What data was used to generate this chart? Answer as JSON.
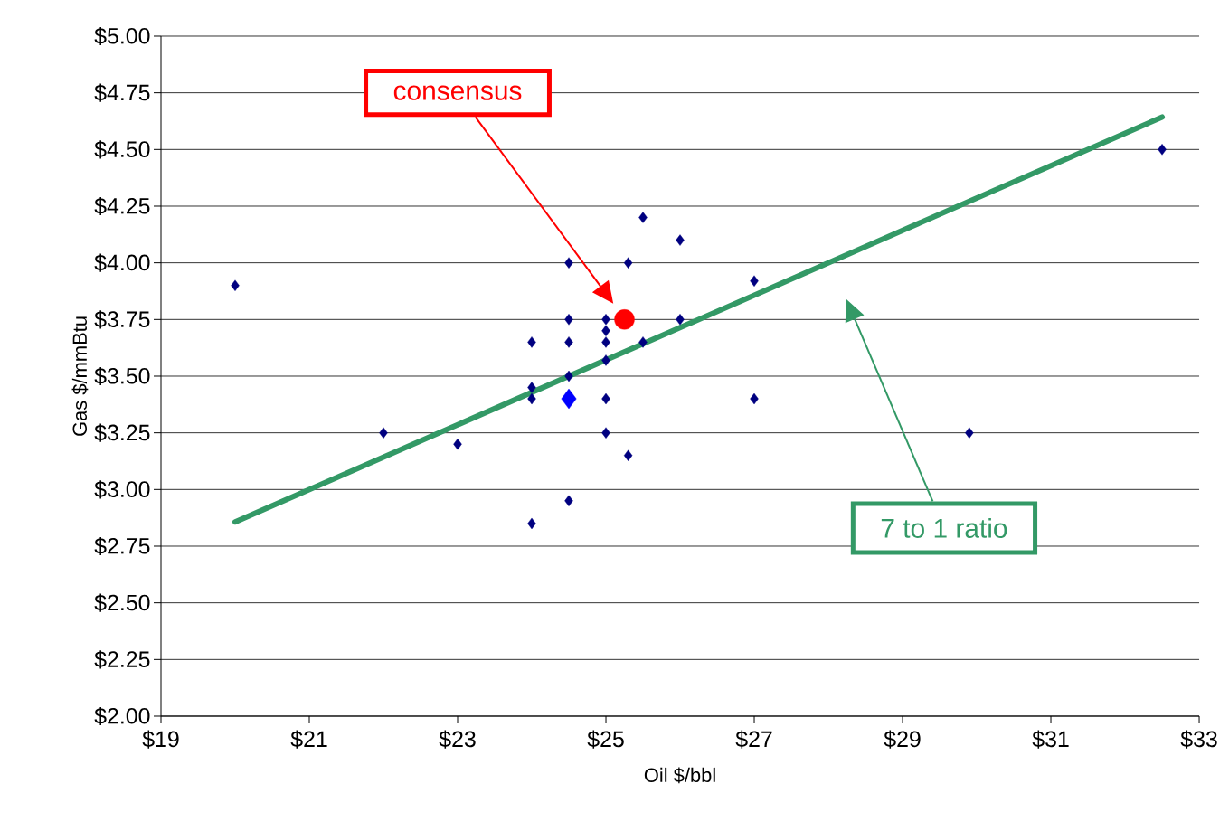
{
  "chart_data": {
    "type": "scatter",
    "xlabel": "Oil $/bbl",
    "ylabel": "Gas $/mmBtu",
    "xlim": [
      19,
      33
    ],
    "ylim": [
      2,
      5
    ],
    "xticks": [
      {
        "value": 19,
        "label": "$19"
      },
      {
        "value": 21,
        "label": "$21"
      },
      {
        "value": 23,
        "label": "$23"
      },
      {
        "value": 25,
        "label": "$25"
      },
      {
        "value": 27,
        "label": "$27"
      },
      {
        "value": 29,
        "label": "$29"
      },
      {
        "value": 31,
        "label": "$31"
      },
      {
        "value": 33,
        "label": "$33"
      }
    ],
    "yticks": [
      {
        "value": 2,
        "label": "$2.00"
      },
      {
        "value": 2.25,
        "label": "$2.25"
      },
      {
        "value": 2.5,
        "label": "$2.50"
      },
      {
        "value": 2.75,
        "label": "$2.75"
      },
      {
        "value": 3,
        "label": "$3.00"
      },
      {
        "value": 3.25,
        "label": "$3.25"
      },
      {
        "value": 3.5,
        "label": "$3.50"
      },
      {
        "value": 3.75,
        "label": "$3.75"
      },
      {
        "value": 4,
        "label": "$4.00"
      },
      {
        "value": 4.25,
        "label": "$4.25"
      },
      {
        "value": 4.5,
        "label": "$4.50"
      },
      {
        "value": 4.75,
        "label": "$4.75"
      },
      {
        "value": 5,
        "label": "$5.00"
      }
    ],
    "grid": "y",
    "series": [
      {
        "marker": "diamond",
        "color": "#000080",
        "x": [
          20,
          22,
          23,
          24,
          24,
          24,
          24,
          24.5,
          24.5,
          24.5,
          24.5,
          24.5,
          25,
          25,
          25,
          25,
          25,
          25,
          25.3,
          25.3,
          25.5,
          25.5,
          26,
          26,
          27,
          27,
          29.9,
          32.5
        ],
        "values": [
          3.9,
          3.25,
          3.2,
          3.65,
          3.45,
          3.4,
          2.85,
          4.0,
          3.75,
          3.65,
          3.5,
          2.95,
          3.75,
          3.7,
          3.65,
          3.57,
          3.4,
          3.25,
          4.0,
          3.15,
          4.2,
          3.65,
          4.1,
          3.75,
          3.92,
          3.4,
          3.25,
          4.5
        ]
      },
      {
        "marker": "diamond",
        "color": "#0000ff",
        "x": [
          24.5
        ],
        "values": [
          3.4
        ]
      },
      {
        "marker": "circle",
        "color": "#ff0000",
        "x": [
          25.25
        ],
        "values": [
          3.75
        ]
      },
      {
        "type": "line",
        "marker": "none",
        "color": "#339966",
        "x": [
          20,
          32.5
        ],
        "values": [
          2.857,
          4.643
        ]
      }
    ],
    "annotations": [
      "consensus",
      "7 to 1 ratio"
    ]
  }
}
